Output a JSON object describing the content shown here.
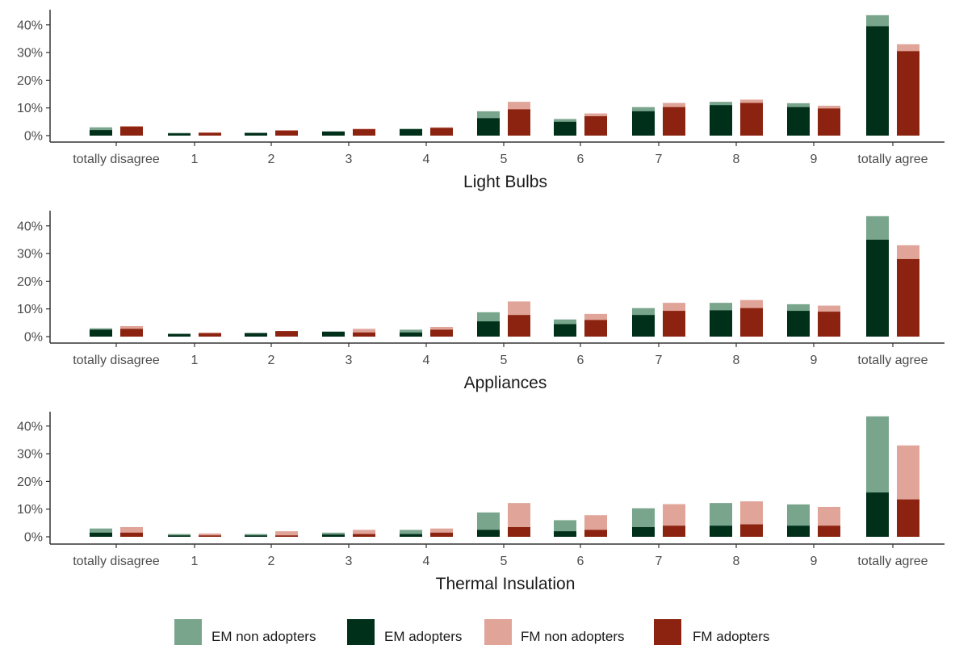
{
  "colors": {
    "em_non_adopters": "#7aa58d",
    "em_adopters": "#00301a",
    "fm_non_adopters": "#e0a499",
    "fm_adopters": "#8b2310",
    "axis": "#333333"
  },
  "legend": {
    "items": [
      {
        "key": "em_non_adopters",
        "label": "EM non adopters"
      },
      {
        "key": "em_adopters",
        "label": "EM adopters"
      },
      {
        "key": "fm_non_adopters",
        "label": "FM non adopters"
      },
      {
        "key": "fm_adopters",
        "label": "FM adopters"
      }
    ],
    "position": "bottom"
  },
  "chart_data": [
    {
      "type": "bar",
      "title": "",
      "xlabel": "Light Bulbs",
      "ylabel": "",
      "ylim": [
        0,
        45
      ],
      "yticks": [
        0,
        10,
        20,
        30,
        40
      ],
      "ytick_labels": [
        "0%",
        "10%",
        "20%",
        "30%",
        "40%"
      ],
      "categories": [
        "totally disagree",
        "1",
        "2",
        "3",
        "4",
        "5",
        "6",
        "7",
        "8",
        "9",
        "totally agree"
      ],
      "series": [
        {
          "name": "EM non adopters",
          "values": [
            3,
            1,
            1,
            1.5,
            2.5,
            8.8,
            6,
            10.3,
            12.2,
            11.7,
            43.5
          ]
        },
        {
          "name": "EM adopters",
          "values": [
            2,
            0.8,
            1,
            1.5,
            2.3,
            6.3,
            5,
            8.8,
            11,
            10.3,
            39.5
          ]
        },
        {
          "name": "FM non adopters",
          "values": [
            3.5,
            1.2,
            2,
            2.5,
            3,
            12.2,
            8,
            11.8,
            13,
            10.8,
            33
          ]
        },
        {
          "name": "FM adopters",
          "values": [
            3.2,
            1,
            1.8,
            2.3,
            2.8,
            9.5,
            7,
            10.3,
            11.8,
            9.8,
            30.5
          ]
        }
      ]
    },
    {
      "type": "bar",
      "title": "",
      "xlabel": "Appliances",
      "ylabel": "",
      "ylim": [
        0,
        45
      ],
      "yticks": [
        0,
        10,
        20,
        30,
        40
      ],
      "ytick_labels": [
        "0%",
        "10%",
        "20%",
        "30%",
        "40%"
      ],
      "categories": [
        "totally disagree",
        "1",
        "2",
        "3",
        "4",
        "5",
        "6",
        "7",
        "8",
        "9",
        "totally agree"
      ],
      "series": [
        {
          "name": "EM non adopters",
          "values": [
            3,
            1,
            1,
            1.5,
            2.5,
            8.8,
            6.2,
            10.3,
            12.2,
            11.7,
            43.5
          ]
        },
        {
          "name": "EM adopters",
          "values": [
            2.5,
            1,
            1.3,
            1.8,
            1.5,
            5.5,
            4.5,
            7.8,
            9.5,
            9.3,
            35
          ]
        },
        {
          "name": "FM non adopters",
          "values": [
            3.8,
            1.5,
            2,
            2.8,
            3.5,
            12.7,
            8.2,
            12.2,
            13.2,
            11.2,
            33
          ]
        },
        {
          "name": "FM adopters",
          "values": [
            2.8,
            1.2,
            2,
            1.5,
            2.5,
            7.8,
            6,
            9.3,
            10.3,
            9,
            28
          ]
        }
      ]
    },
    {
      "type": "bar",
      "title": "",
      "xlabel": "Thermal Insulation",
      "ylabel": "",
      "ylim": [
        0,
        45
      ],
      "yticks": [
        0,
        10,
        20,
        30,
        40
      ],
      "ytick_labels": [
        "0%",
        "10%",
        "20%",
        "30%",
        "40%"
      ],
      "categories": [
        "totally disagree",
        "1",
        "2",
        "3",
        "4",
        "5",
        "6",
        "7",
        "8",
        "9",
        "totally agree"
      ],
      "series": [
        {
          "name": "EM non adopters",
          "values": [
            3,
            1,
            1,
            1.5,
            2.5,
            8.8,
            6,
            10.3,
            12.2,
            11.7,
            43.5
          ]
        },
        {
          "name": "EM adopters",
          "values": [
            1.5,
            0.5,
            0.5,
            0.8,
            1,
            2.5,
            2,
            3.5,
            4,
            4,
            16
          ]
        },
        {
          "name": "FM non adopters",
          "values": [
            3.5,
            1.2,
            2,
            2.5,
            3,
            12.2,
            7.8,
            11.8,
            12.8,
            10.8,
            33
          ]
        },
        {
          "name": "FM adopters",
          "values": [
            1.5,
            0.5,
            0.5,
            1,
            1.5,
            3.5,
            2.5,
            4,
            4.5,
            4,
            13.5
          ]
        }
      ]
    }
  ]
}
